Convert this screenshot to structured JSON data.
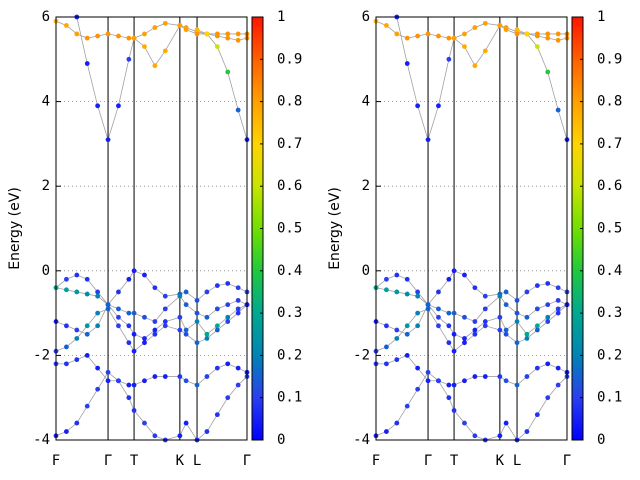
{
  "chart_data": [
    {
      "type": "bands",
      "ylabel": "Energy (eV)",
      "x": [
        0,
        0.2,
        0.4,
        0.6,
        0.8,
        1.0,
        1.2,
        1.4,
        1.5,
        1.7,
        1.9,
        2.1,
        2.38,
        2.5,
        2.71,
        2.9,
        3.1,
        3.3,
        3.5,
        3.67
      ],
      "xlim": [
        0,
        3.67
      ],
      "xticks": [
        {
          "value": 0,
          "label": "F"
        },
        {
          "value": 1,
          "label": "Γ"
        },
        {
          "value": 1.5,
          "label": "T"
        },
        {
          "value": 2.38,
          "label": "K"
        },
        {
          "value": 2.71,
          "label": "L"
        },
        {
          "value": 3.67,
          "label": "Γ"
        }
      ],
      "ylim": [
        -4,
        6
      ],
      "yticks": [
        -4,
        -2,
        0,
        2,
        4,
        6
      ],
      "grid": true,
      "line_color": "#a0a0a0",
      "colorbar": {
        "lim": [
          0,
          1
        ],
        "ticks": [
          0,
          0.1,
          0.2,
          0.3,
          0.4,
          0.5,
          0.6,
          0.7,
          0.8,
          0.9,
          1
        ]
      },
      "colormap": [
        "#0000ff",
        "#2a3ef0",
        "#0084b4",
        "#00a890",
        "#20c840",
        "#70e000",
        "#c8e400",
        "#ffd400",
        "#ffa000",
        "#ff6000",
        "#ff1400"
      ],
      "series": [
        {
          "values": [
            5.9,
            5.8,
            5.6,
            5.5,
            5.55,
            5.6,
            5.55,
            5.5,
            5.5,
            5.6,
            5.75,
            5.85,
            5.8,
            5.7,
            5.6,
            5.6,
            5.6,
            5.6,
            5.6,
            5.6
          ],
          "weights": [
            0.75,
            0.78,
            0.8,
            0.82,
            0.82,
            0.82,
            0.82,
            0.82,
            0.82,
            0.8,
            0.8,
            0.8,
            0.8,
            0.8,
            0.82,
            0.82,
            0.82,
            0.82,
            0.82,
            0.82
          ]
        },
        {
          "values": [
            null,
            null,
            6.0,
            4.9,
            3.9,
            3.1,
            3.9,
            5.0,
            5.5,
            5.3,
            4.85,
            5.2,
            5.8,
            5.75,
            5.65,
            5.6,
            5.55,
            5.5,
            5.45,
            5.5
          ],
          "weights": [
            null,
            null,
            0.05,
            0.05,
            0.05,
            0.05,
            0.05,
            0.1,
            0.8,
            0.78,
            0.78,
            0.78,
            0.8,
            0.8,
            0.82,
            0.82,
            0.82,
            0.82,
            0.82,
            0.82
          ]
        },
        {
          "values": [
            null,
            null,
            null,
            null,
            null,
            null,
            null,
            null,
            null,
            null,
            null,
            null,
            null,
            null,
            5.7,
            5.6,
            5.3,
            4.7,
            3.8,
            3.1
          ],
          "weights": [
            null,
            null,
            null,
            null,
            null,
            null,
            null,
            null,
            null,
            null,
            null,
            null,
            null,
            null,
            0.75,
            0.7,
            0.6,
            0.4,
            0.15,
            0.05
          ]
        },
        {
          "values": [
            -0.4,
            -0.2,
            -0.1,
            -0.2,
            -0.5,
            -0.8,
            -0.5,
            -0.2,
            0.0,
            -0.1,
            -0.4,
            -0.6,
            -0.55,
            -0.5,
            -0.7,
            -0.5,
            -0.35,
            -0.3,
            -0.4,
            -0.5
          ],
          "weights": [
            0.3,
            0.1,
            0.08,
            0.08,
            0.1,
            0.15,
            0.08,
            0.05,
            0.05,
            0.05,
            0.08,
            0.1,
            0.15,
            0.15,
            0.12,
            0.1,
            0.08,
            0.08,
            0.1,
            0.12
          ]
        },
        {
          "values": [
            -0.4,
            -0.45,
            -0.5,
            -0.55,
            -0.6,
            -0.8,
            -0.9,
            -1.0,
            -1.0,
            -1.1,
            -1.2,
            -0.9,
            -0.6,
            -0.8,
            -1.0,
            -1.1,
            -0.9,
            -0.8,
            -0.7,
            -0.8
          ],
          "weights": [
            0.3,
            0.28,
            0.25,
            0.22,
            0.2,
            0.15,
            0.15,
            0.15,
            0.15,
            0.12,
            0.1,
            0.1,
            0.2,
            0.15,
            0.12,
            0.15,
            0.12,
            0.1,
            0.1,
            0.1
          ]
        },
        {
          "values": [
            -1.2,
            -1.3,
            -1.4,
            -1.5,
            -1.3,
            -0.8,
            -1.1,
            -1.3,
            -1.5,
            -1.6,
            -1.4,
            -1.2,
            -1.1,
            -1.4,
            -1.2,
            -1.5,
            -1.3,
            -1.1,
            -0.9,
            -0.8
          ],
          "weights": [
            0.05,
            0.08,
            0.1,
            0.15,
            0.2,
            0.15,
            0.1,
            0.08,
            0.05,
            0.05,
            0.05,
            0.08,
            0.1,
            0.15,
            0.2,
            0.3,
            0.3,
            0.2,
            0.1,
            0.08
          ]
        },
        {
          "values": [
            -1.9,
            -1.8,
            -1.6,
            -1.3,
            -1.0,
            -0.9,
            -1.3,
            -1.7,
            -1.9,
            -1.7,
            -1.5,
            -1.3,
            -1.4,
            -1.5,
            -1.7,
            -1.6,
            -1.4,
            -1.2,
            -1.0,
            -0.8
          ],
          "weights": [
            0.1,
            0.15,
            0.2,
            0.25,
            0.2,
            0.15,
            0.1,
            0.08,
            0.05,
            0.05,
            0.08,
            0.1,
            0.1,
            0.12,
            0.15,
            0.2,
            0.15,
            0.1,
            0.08,
            0.05
          ]
        },
        {
          "values": [
            -2.2,
            -2.2,
            -2.1,
            -2.0,
            -2.3,
            -2.6,
            -2.6,
            -2.7,
            -2.7,
            -2.6,
            -2.5,
            -2.5,
            -2.5,
            -2.6,
            -2.7,
            -2.5,
            -2.3,
            -2.2,
            -2.3,
            -2.4
          ],
          "weights": [
            0.1,
            0.08,
            0.08,
            0.05,
            0.05,
            0.05,
            0.05,
            0.05,
            0.05,
            0.05,
            0.05,
            0.05,
            0.08,
            0.12,
            0.15,
            0.1,
            0.08,
            0.05,
            0.05,
            0.05
          ]
        },
        {
          "values": [
            -3.9,
            -3.8,
            -3.6,
            -3.2,
            -2.8,
            -2.4,
            -2.6,
            -3.0,
            -3.3,
            -3.6,
            -3.9,
            -4.0,
            -3.9,
            -3.6,
            -4.0,
            -3.8,
            -3.4,
            -3.0,
            -2.7,
            -2.5
          ],
          "weights": [
            0.05,
            0.05,
            0.08,
            0.1,
            0.1,
            0.1,
            0.1,
            0.08,
            0.08,
            0.1,
            0.1,
            0.08,
            0.05,
            0.05,
            0.05,
            0.08,
            0.08,
            0.1,
            0.1,
            0.1
          ]
        }
      ]
    },
    {
      "type": "bands",
      "ylabel": "Energy (eV)",
      "x": [
        0,
        0.2,
        0.4,
        0.6,
        0.8,
        1.0,
        1.2,
        1.4,
        1.5,
        1.7,
        1.9,
        2.1,
        2.38,
        2.5,
        2.71,
        2.9,
        3.1,
        3.3,
        3.5,
        3.67
      ],
      "xlim": [
        0,
        3.67
      ],
      "xticks": [
        {
          "value": 0,
          "label": "F"
        },
        {
          "value": 1,
          "label": "Γ"
        },
        {
          "value": 1.5,
          "label": "T"
        },
        {
          "value": 2.38,
          "label": "K"
        },
        {
          "value": 2.71,
          "label": "L"
        },
        {
          "value": 3.67,
          "label": "Γ"
        }
      ],
      "ylim": [
        -4,
        6
      ],
      "yticks": [
        -4,
        -2,
        0,
        2,
        4,
        6
      ],
      "grid": true,
      "line_color": "#a0a0a0",
      "colorbar": {
        "lim": [
          0,
          1
        ],
        "ticks": [
          0,
          0.1,
          0.2,
          0.3,
          0.4,
          0.5,
          0.6,
          0.7,
          0.8,
          0.9,
          1
        ]
      },
      "colormap": [
        "#0000ff",
        "#2a3ef0",
        "#0084b4",
        "#00a890",
        "#20c840",
        "#70e000",
        "#c8e400",
        "#ffd400",
        "#ffa000",
        "#ff6000",
        "#ff1400"
      ],
      "series": [
        {
          "values": [
            5.9,
            5.8,
            5.6,
            5.5,
            5.55,
            5.6,
            5.55,
            5.5,
            5.5,
            5.6,
            5.75,
            5.85,
            5.8,
            5.7,
            5.6,
            5.6,
            5.6,
            5.6,
            5.6,
            5.6
          ],
          "weights": [
            0.75,
            0.78,
            0.8,
            0.82,
            0.82,
            0.82,
            0.82,
            0.82,
            0.82,
            0.8,
            0.8,
            0.8,
            0.8,
            0.8,
            0.82,
            0.82,
            0.82,
            0.82,
            0.82,
            0.82
          ]
        },
        {
          "values": [
            null,
            null,
            6.0,
            4.9,
            3.9,
            3.1,
            3.9,
            5.0,
            5.5,
            5.3,
            4.85,
            5.2,
            5.8,
            5.75,
            5.65,
            5.6,
            5.55,
            5.5,
            5.45,
            5.5
          ],
          "weights": [
            null,
            null,
            0.05,
            0.05,
            0.05,
            0.05,
            0.05,
            0.1,
            0.8,
            0.78,
            0.78,
            0.78,
            0.8,
            0.8,
            0.82,
            0.82,
            0.82,
            0.82,
            0.82,
            0.82
          ]
        },
        {
          "values": [
            null,
            null,
            null,
            null,
            null,
            null,
            null,
            null,
            null,
            null,
            null,
            null,
            null,
            null,
            5.7,
            5.6,
            5.3,
            4.7,
            3.8,
            3.1
          ],
          "weights": [
            null,
            null,
            null,
            null,
            null,
            null,
            null,
            null,
            null,
            null,
            null,
            null,
            null,
            null,
            0.75,
            0.7,
            0.6,
            0.4,
            0.15,
            0.05
          ]
        },
        {
          "values": [
            -0.4,
            -0.2,
            -0.1,
            -0.2,
            -0.5,
            -0.8,
            -0.5,
            -0.2,
            0.0,
            -0.1,
            -0.4,
            -0.6,
            -0.55,
            -0.5,
            -0.7,
            -0.5,
            -0.35,
            -0.3,
            -0.4,
            -0.5
          ],
          "weights": [
            0.3,
            0.1,
            0.08,
            0.08,
            0.1,
            0.15,
            0.08,
            0.05,
            0.05,
            0.05,
            0.08,
            0.1,
            0.15,
            0.15,
            0.12,
            0.1,
            0.08,
            0.08,
            0.1,
            0.12
          ]
        },
        {
          "values": [
            -0.4,
            -0.45,
            -0.5,
            -0.55,
            -0.6,
            -0.8,
            -0.9,
            -1.0,
            -1.0,
            -1.1,
            -1.2,
            -0.9,
            -0.6,
            -0.8,
            -1.0,
            -1.1,
            -0.9,
            -0.8,
            -0.7,
            -0.8
          ],
          "weights": [
            0.3,
            0.28,
            0.25,
            0.22,
            0.2,
            0.15,
            0.15,
            0.15,
            0.15,
            0.12,
            0.1,
            0.1,
            0.2,
            0.15,
            0.12,
            0.15,
            0.12,
            0.1,
            0.1,
            0.1
          ]
        },
        {
          "values": [
            -1.2,
            -1.3,
            -1.4,
            -1.5,
            -1.3,
            -0.8,
            -1.1,
            -1.3,
            -1.5,
            -1.6,
            -1.4,
            -1.2,
            -1.1,
            -1.4,
            -1.2,
            -1.5,
            -1.3,
            -1.1,
            -0.9,
            -0.8
          ],
          "weights": [
            0.05,
            0.08,
            0.1,
            0.15,
            0.2,
            0.15,
            0.1,
            0.08,
            0.05,
            0.05,
            0.05,
            0.08,
            0.1,
            0.15,
            0.2,
            0.3,
            0.3,
            0.2,
            0.1,
            0.08
          ]
        },
        {
          "values": [
            -1.9,
            -1.8,
            -1.6,
            -1.3,
            -1.0,
            -0.9,
            -1.3,
            -1.7,
            -1.9,
            -1.7,
            -1.5,
            -1.3,
            -1.4,
            -1.5,
            -1.7,
            -1.6,
            -1.4,
            -1.2,
            -1.0,
            -0.8
          ],
          "weights": [
            0.1,
            0.15,
            0.2,
            0.25,
            0.2,
            0.15,
            0.1,
            0.08,
            0.05,
            0.05,
            0.08,
            0.1,
            0.1,
            0.12,
            0.15,
            0.2,
            0.15,
            0.1,
            0.08,
            0.05
          ]
        },
        {
          "values": [
            -2.2,
            -2.2,
            -2.1,
            -2.0,
            -2.3,
            -2.6,
            -2.6,
            -2.7,
            -2.7,
            -2.6,
            -2.5,
            -2.5,
            -2.5,
            -2.6,
            -2.7,
            -2.5,
            -2.3,
            -2.2,
            -2.3,
            -2.4
          ],
          "weights": [
            0.1,
            0.08,
            0.08,
            0.05,
            0.05,
            0.05,
            0.05,
            0.05,
            0.05,
            0.05,
            0.05,
            0.05,
            0.08,
            0.12,
            0.15,
            0.1,
            0.08,
            0.05,
            0.05,
            0.05
          ]
        },
        {
          "values": [
            -3.9,
            -3.8,
            -3.6,
            -3.2,
            -2.8,
            -2.4,
            -2.6,
            -3.0,
            -3.3,
            -3.6,
            -3.9,
            -4.0,
            -3.9,
            -3.6,
            -4.0,
            -3.8,
            -3.4,
            -3.0,
            -2.7,
            -2.5
          ],
          "weights": [
            0.05,
            0.05,
            0.08,
            0.1,
            0.1,
            0.1,
            0.1,
            0.08,
            0.08,
            0.1,
            0.1,
            0.08,
            0.05,
            0.05,
            0.05,
            0.08,
            0.08,
            0.1,
            0.1,
            0.1
          ]
        }
      ]
    }
  ]
}
